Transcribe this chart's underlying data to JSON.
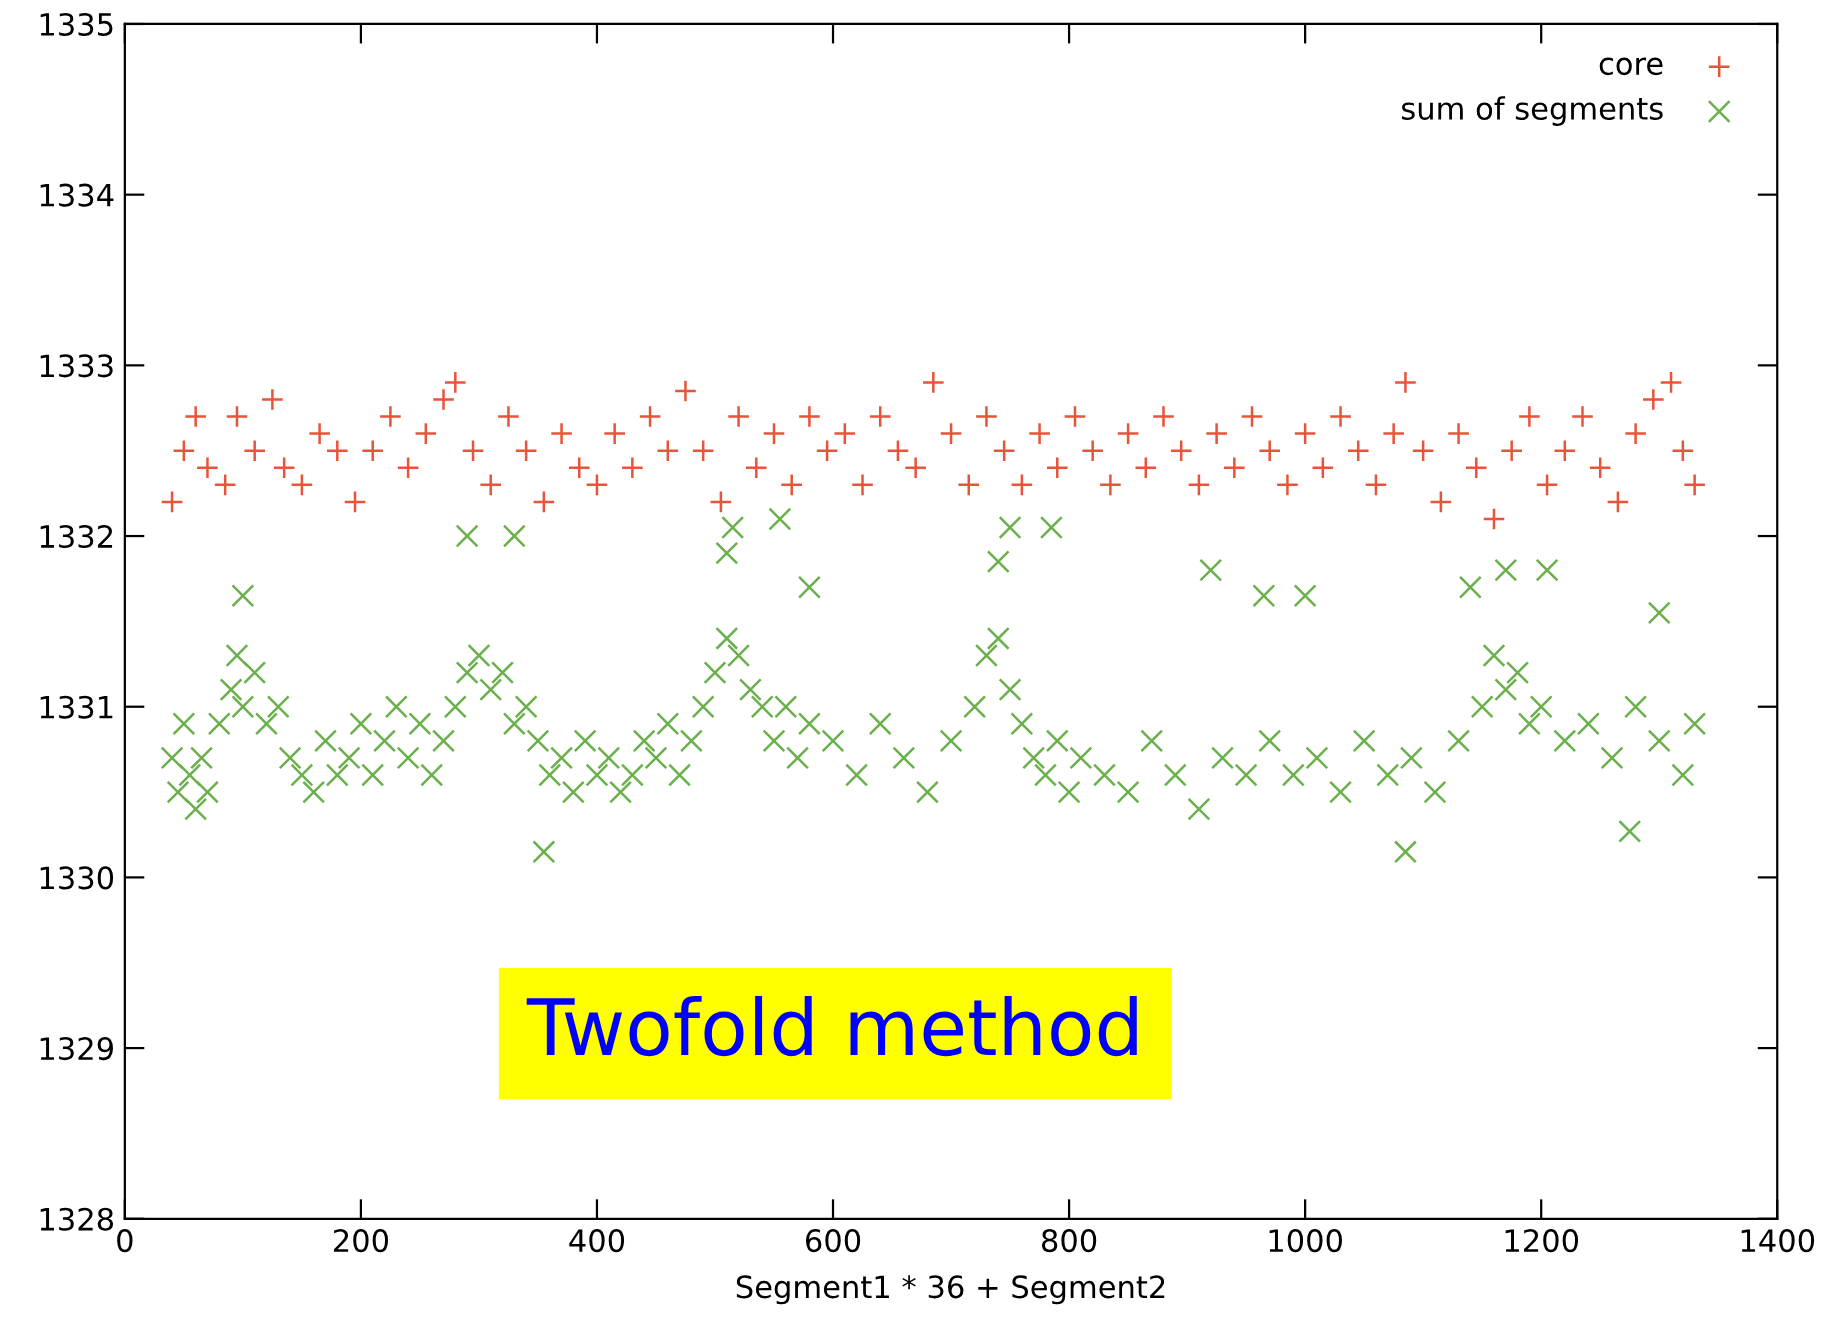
{
  "chart_data": {
    "type": "scatter",
    "xlabel": "Segment1 * 36 + Segment2",
    "xlim": [
      0,
      1400
    ],
    "xticks": [
      0,
      200,
      400,
      600,
      800,
      1000,
      1200,
      1400
    ],
    "ylim": [
      1328,
      1335
    ],
    "yticks": [
      1328,
      1329,
      1330,
      1331,
      1332,
      1333,
      1334,
      1335
    ],
    "grid": false,
    "legend": "top right",
    "annotations": [
      "Twofold method"
    ],
    "series": [
      {
        "name": "core",
        "color": "#e8543a",
        "marker": "plus",
        "x": [
          40,
          50,
          60,
          70,
          85,
          95,
          110,
          125,
          135,
          150,
          165,
          180,
          195,
          210,
          225,
          240,
          255,
          270,
          280,
          295,
          310,
          325,
          340,
          355,
          370,
          385,
          400,
          415,
          430,
          445,
          460,
          475,
          490,
          505,
          520,
          535,
          550,
          565,
          580,
          595,
          610,
          625,
          640,
          655,
          670,
          685,
          700,
          715,
          730,
          745,
          760,
          775,
          790,
          805,
          820,
          835,
          850,
          865,
          880,
          895,
          910,
          925,
          940,
          955,
          970,
          985,
          1000,
          1015,
          1030,
          1045,
          1060,
          1075,
          1085,
          1100,
          1115,
          1130,
          1145,
          1160,
          1175,
          1190,
          1205,
          1220,
          1235,
          1250,
          1265,
          1280,
          1295,
          1310,
          1320,
          1330
        ],
        "values": [
          1332.2,
          1332.5,
          1332.7,
          1332.4,
          1332.3,
          1332.7,
          1332.5,
          1332.8,
          1332.4,
          1332.3,
          1332.6,
          1332.5,
          1332.2,
          1332.5,
          1332.7,
          1332.4,
          1332.6,
          1332.8,
          1332.9,
          1332.5,
          1332.3,
          1332.7,
          1332.5,
          1332.2,
          1332.6,
          1332.4,
          1332.3,
          1332.6,
          1332.4,
          1332.7,
          1332.5,
          1332.85,
          1332.5,
          1332.2,
          1332.7,
          1332.4,
          1332.6,
          1332.3,
          1332.7,
          1332.5,
          1332.6,
          1332.3,
          1332.7,
          1332.5,
          1332.4,
          1332.9,
          1332.6,
          1332.3,
          1332.7,
          1332.5,
          1332.3,
          1332.6,
          1332.4,
          1332.7,
          1332.5,
          1332.3,
          1332.6,
          1332.4,
          1332.7,
          1332.5,
          1332.3,
          1332.6,
          1332.4,
          1332.7,
          1332.5,
          1332.3,
          1332.6,
          1332.4,
          1332.7,
          1332.5,
          1332.3,
          1332.6,
          1332.9,
          1332.5,
          1332.2,
          1332.6,
          1332.4,
          1332.1,
          1332.5,
          1332.7,
          1332.3,
          1332.5,
          1332.7,
          1332.4,
          1332.2,
          1332.6,
          1332.8,
          1332.9,
          1332.5,
          1332.3
        ]
      },
      {
        "name": "sum of segments",
        "color": "#6ab04c",
        "marker": "cross",
        "x": [
          40,
          45,
          50,
          55,
          60,
          65,
          70,
          80,
          90,
          95,
          100,
          110,
          120,
          130,
          140,
          150,
          160,
          170,
          180,
          190,
          200,
          210,
          220,
          230,
          240,
          250,
          260,
          270,
          280,
          290,
          300,
          310,
          320,
          330,
          340,
          350,
          360,
          370,
          380,
          390,
          400,
          410,
          420,
          430,
          440,
          450,
          460,
          470,
          480,
          490,
          500,
          510,
          520,
          530,
          540,
          550,
          560,
          570,
          580,
          600,
          620,
          640,
          660,
          680,
          700,
          720,
          730,
          740,
          750,
          760,
          770,
          780,
          790,
          800,
          810,
          830,
          850,
          870,
          890,
          910,
          930,
          950,
          970,
          990,
          1010,
          1030,
          1050,
          1070,
          1090,
          1110,
          1130,
          1150,
          1160,
          1170,
          1180,
          1190,
          1200,
          1220,
          1240,
          1260,
          1280,
          1300,
          1320,
          1330,
          355,
          1085,
          1275,
          290,
          330,
          515,
          555,
          750,
          785,
          510,
          740,
          920,
          1170,
          1205,
          1140,
          100,
          580,
          965,
          1000,
          1300
        ],
        "values": [
          1330.7,
          1330.5,
          1330.9,
          1330.6,
          1330.4,
          1330.7,
          1330.5,
          1330.9,
          1331.1,
          1331.3,
          1331.0,
          1331.2,
          1330.9,
          1331.0,
          1330.7,
          1330.6,
          1330.5,
          1330.8,
          1330.6,
          1330.7,
          1330.9,
          1330.6,
          1330.8,
          1331.0,
          1330.7,
          1330.9,
          1330.6,
          1330.8,
          1331.0,
          1331.2,
          1331.3,
          1331.1,
          1331.2,
          1330.9,
          1331.0,
          1330.8,
          1330.6,
          1330.7,
          1330.5,
          1330.8,
          1330.6,
          1330.7,
          1330.5,
          1330.6,
          1330.8,
          1330.7,
          1330.9,
          1330.6,
          1330.8,
          1331.0,
          1331.2,
          1331.4,
          1331.3,
          1331.1,
          1331.0,
          1330.8,
          1331.0,
          1330.7,
          1330.9,
          1330.8,
          1330.6,
          1330.9,
          1330.7,
          1330.5,
          1330.8,
          1331.0,
          1331.3,
          1331.4,
          1331.1,
          1330.9,
          1330.7,
          1330.6,
          1330.8,
          1330.5,
          1330.7,
          1330.6,
          1330.5,
          1330.8,
          1330.6,
          1330.4,
          1330.7,
          1330.6,
          1330.8,
          1330.6,
          1330.7,
          1330.5,
          1330.8,
          1330.6,
          1330.7,
          1330.5,
          1330.8,
          1331.0,
          1331.3,
          1331.1,
          1331.2,
          1330.9,
          1331.0,
          1330.8,
          1330.9,
          1330.7,
          1331.0,
          1330.8,
          1330.6,
          1330.9,
          1330.15,
          1330.15,
          1330.27,
          1332.0,
          1332.0,
          1332.05,
          1332.1,
          1332.05,
          1332.05,
          1331.9,
          1331.85,
          1331.8,
          1331.8,
          1331.8,
          1331.7,
          1331.65,
          1331.7,
          1331.65,
          1331.65,
          1331.55
        ]
      }
    ]
  }
}
